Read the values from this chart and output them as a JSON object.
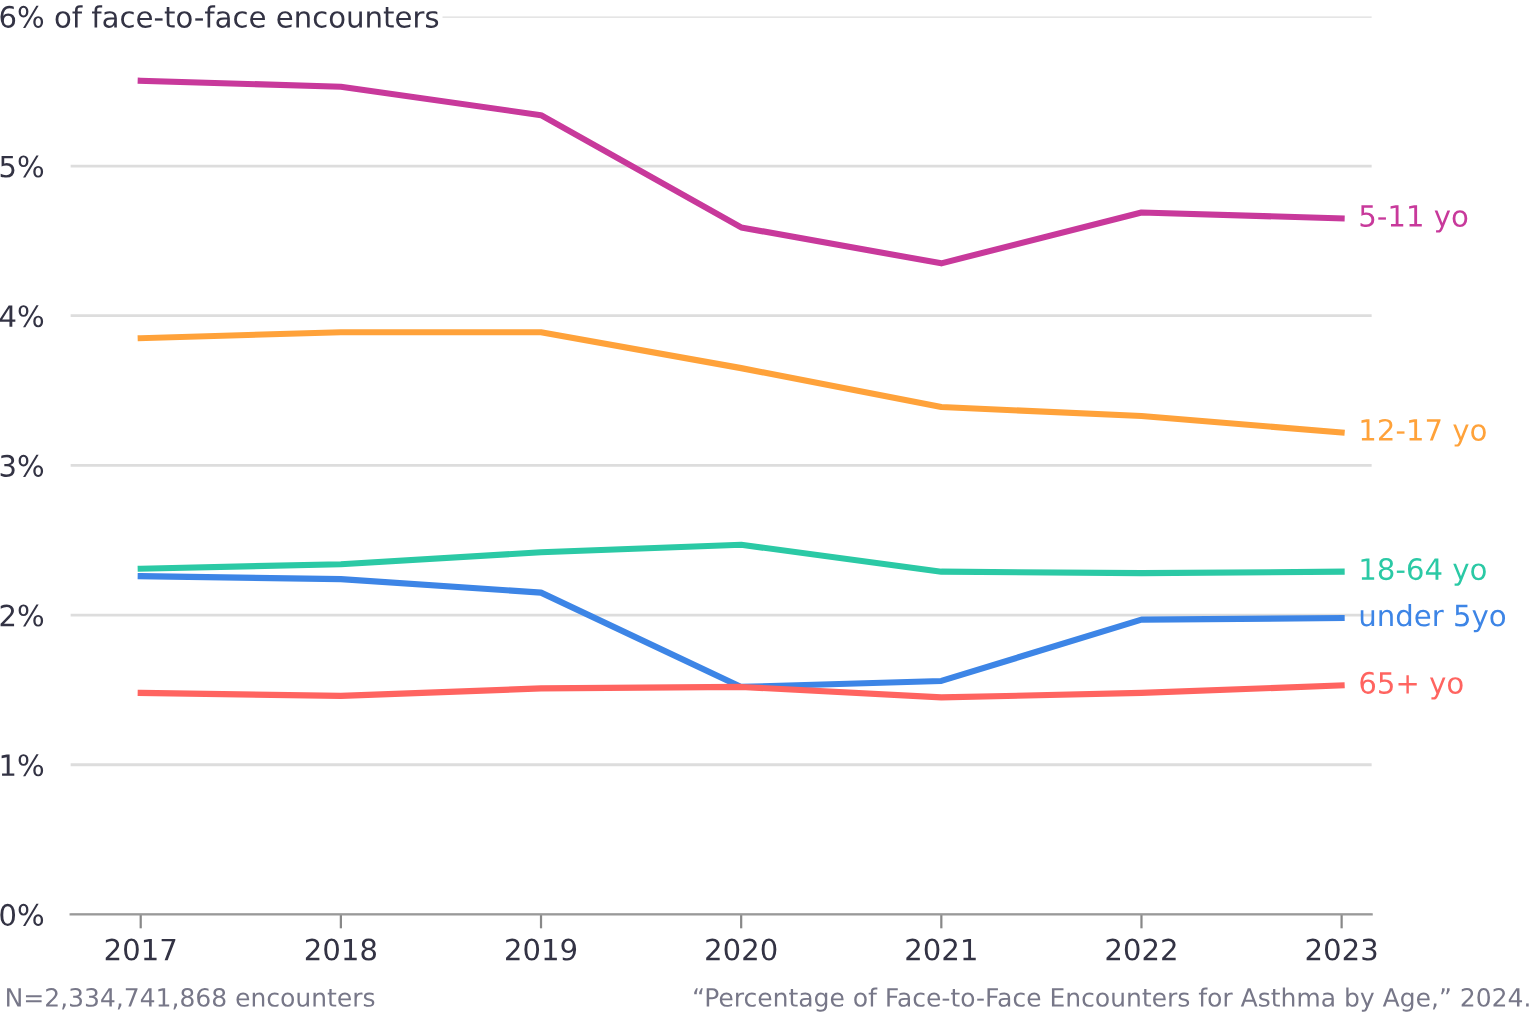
{
  "chart_data": {
    "type": "line",
    "x": [
      2017,
      2018,
      2019,
      2020,
      2021,
      2022,
      2023
    ],
    "xlim": [
      2016.65,
      2023.15
    ],
    "xticks": [
      2017,
      2018,
      2019,
      2020,
      2021,
      2022,
      2023
    ],
    "ylim": [
      0,
      6
    ],
    "yticks": [
      {
        "value": 0,
        "label": "0%"
      },
      {
        "value": 1,
        "label": "1%"
      },
      {
        "value": 2,
        "label": "2%"
      },
      {
        "value": 3,
        "label": "3%"
      },
      {
        "value": 4,
        "label": "4%"
      },
      {
        "value": 5,
        "label": "5%"
      },
      {
        "value": 6,
        "label": "6% of face-to-face encounters"
      }
    ],
    "grid": "y",
    "legend": false,
    "marker": "none",
    "line_style": "solid",
    "series": [
      {
        "name": "5-11 yo",
        "color": "#c8399b",
        "values": [
          5.57,
          5.53,
          5.34,
          4.59,
          4.35,
          4.69,
          4.65
        ]
      },
      {
        "name": "12-17 yo",
        "color": "#ffa23a",
        "values": [
          3.85,
          3.89,
          3.89,
          3.65,
          3.39,
          3.33,
          3.22
        ]
      },
      {
        "name": "18-64 yo",
        "color": "#2bc9a5",
        "values": [
          2.31,
          2.34,
          2.42,
          2.47,
          2.29,
          2.28,
          2.29
        ]
      },
      {
        "name": "under 5yo",
        "color": "#3d85e6",
        "values": [
          2.26,
          2.24,
          2.15,
          1.52,
          1.56,
          1.97,
          1.98
        ]
      },
      {
        "name": "65+ yo",
        "color": "#ff6460",
        "values": [
          1.48,
          1.46,
          1.51,
          1.52,
          1.45,
          1.48,
          1.53
        ]
      }
    ],
    "annotations": [
      "N=2,334,741,868 encounters",
      "“Percentage of Face-to-Face Encounters for Asthma by Age,” 2024."
    ]
  }
}
